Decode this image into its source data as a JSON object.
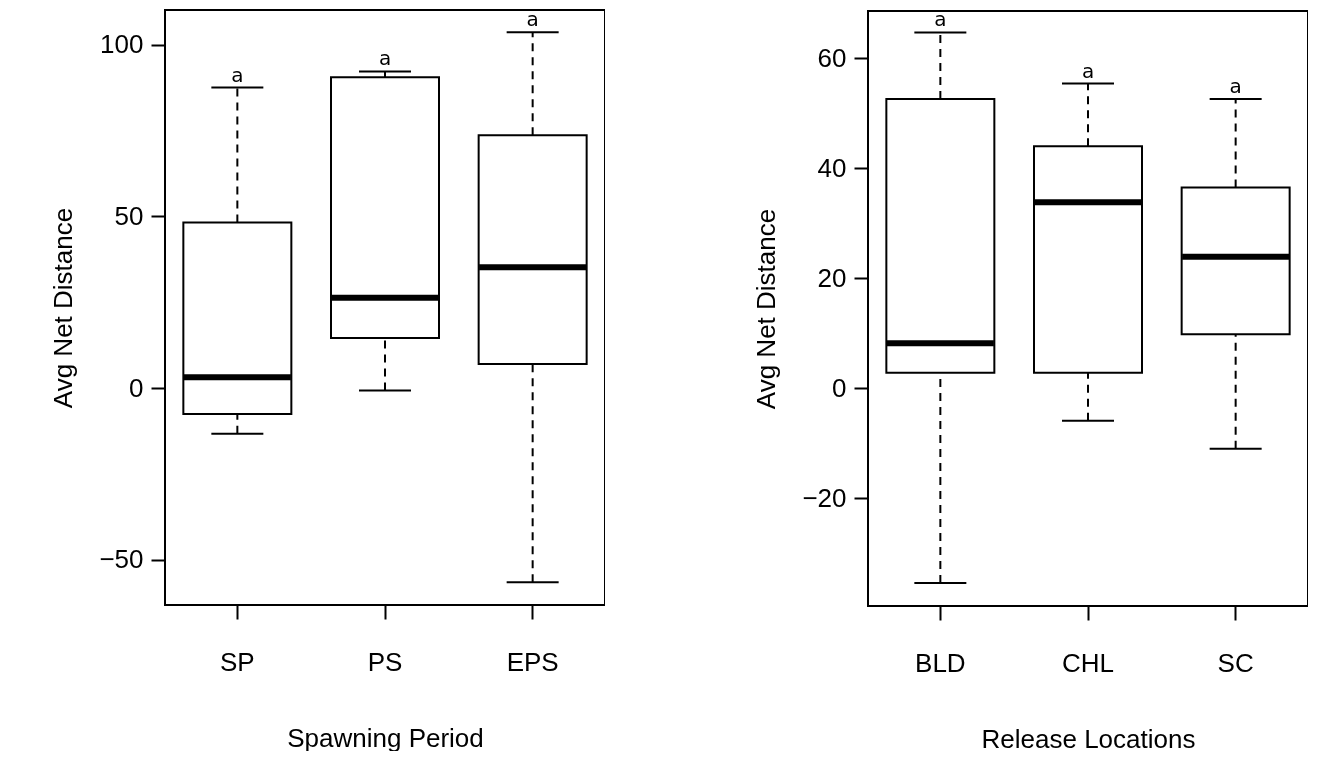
{
  "chart_data": [
    {
      "type": "box",
      "xlabel": "Spawning Period",
      "ylabel": "Avg Net Distance",
      "categories": [
        "SP",
        "PS",
        "EPS"
      ],
      "ylim": [
        -63.2,
        110.1
      ],
      "yticks": [
        -50,
        0,
        50,
        100
      ],
      "grid": false,
      "boxes": [
        {
          "low": -13.3,
          "q1": -7.6,
          "median": 3.1,
          "q3": 48.2,
          "high": 87.5
        },
        {
          "low": -0.7,
          "q1": 14.6,
          "median": 26.3,
          "q3": 90.5,
          "high": 92.2
        },
        {
          "low": -56.6,
          "q1": 7.0,
          "median": 35.2,
          "q3": 73.6,
          "high": 103.6
        }
      ],
      "annotations": [
        {
          "text": "a",
          "x": "SP",
          "y": 87.5
        },
        {
          "text": "a",
          "x": "PS",
          "y": 92.2
        },
        {
          "text": "a",
          "x": "EPS",
          "y": 103.6
        }
      ]
    },
    {
      "type": "box",
      "xlabel": "Release Locations",
      "ylabel": "Avg Net Distance",
      "categories": [
        "BLD",
        "CHL",
        "SC"
      ],
      "ylim": [
        -39.6,
        68.6
      ],
      "yticks": [
        -20,
        0,
        20,
        40,
        60
      ],
      "grid": false,
      "boxes": [
        {
          "low": -35.4,
          "q1": 2.8,
          "median": 8.2,
          "q3": 52.6,
          "high": 64.7
        },
        {
          "low": -5.9,
          "q1": 2.8,
          "median": 33.8,
          "q3": 44.0,
          "high": 55.4
        },
        {
          "low": -11.0,
          "q1": 9.8,
          "median": 23.9,
          "q3": 36.5,
          "high": 52.6
        }
      ],
      "annotations": [
        {
          "text": "a",
          "x": "BLD",
          "y": 64.7
        },
        {
          "text": "a",
          "x": "CHL",
          "y": 55.4
        },
        {
          "text": "a",
          "x": "SC",
          "y": 52.6
        }
      ]
    }
  ]
}
